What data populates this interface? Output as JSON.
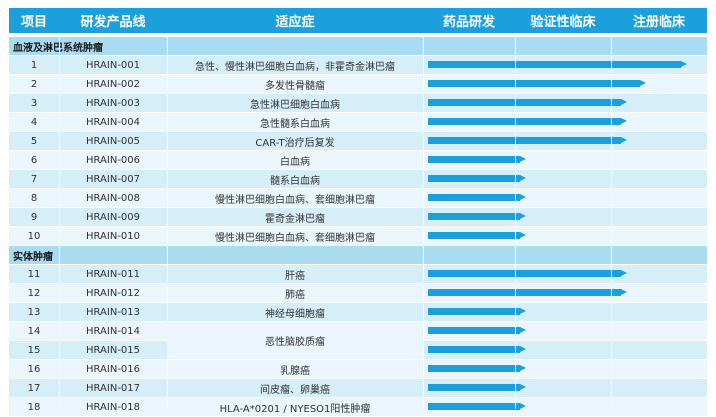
{
  "columns": {
    "c0": "项目",
    "c1": "研发产品线",
    "c2": "适应症",
    "c3": "药品研发",
    "c4": "验证性临床",
    "c5": "注册临床"
  },
  "sections": [
    {
      "title": "血液及淋巴系统肿瘤",
      "rows": [
        {
          "num": "1",
          "code": "HRAIN-001",
          "indication": "急性、慢性淋巴细胞白血病，非霍奇金淋巴瘤",
          "stage": 2.75
        },
        {
          "num": "2",
          "code": "HRAIN-002",
          "indication": "多发性骨髓瘤",
          "stage": 2.3
        },
        {
          "num": "3",
          "code": "HRAIN-003",
          "indication": "急性淋巴细胞白血病",
          "stage": 2.1
        },
        {
          "num": "4",
          "code": "HRAIN-004",
          "indication": "急性髓系白血病",
          "stage": 2.1
        },
        {
          "num": "5",
          "code": "HRAIN-005",
          "indication": "CAR-T治疗后复发",
          "stage": 2.1
        },
        {
          "num": "6",
          "code": "HRAIN-006",
          "indication": "白血病",
          "stage": 1.0
        },
        {
          "num": "7",
          "code": "HRAIN-007",
          "indication": "髓系白血病",
          "stage": 1.0
        },
        {
          "num": "8",
          "code": "HRAIN-008",
          "indication": "慢性淋巴细胞白血病、套细胞淋巴瘤",
          "stage": 1.0
        },
        {
          "num": "9",
          "code": "HRAIN-009",
          "indication": "霍奇金淋巴瘤",
          "stage": 1.0
        },
        {
          "num": "10",
          "code": "HRAIN-010",
          "indication": "慢性淋巴细胞白血病、套细胞淋巴瘤",
          "stage": 1.0
        }
      ]
    },
    {
      "title": "实体肿瘤",
      "rows": [
        {
          "num": "11",
          "code": "HRAIN-011",
          "indication": "肝癌",
          "stage": 2.1
        },
        {
          "num": "12",
          "code": "HRAIN-012",
          "indication": "肺癌",
          "stage": 2.1
        },
        {
          "num": "13",
          "code": "HRAIN-013",
          "indication": "神经母细胞瘤",
          "stage": 1.0
        },
        {
          "num": "14",
          "code": "HRAIN-014",
          "indication": "恶性脑胶质瘤",
          "stage": 1.0
        },
        {
          "num": "15",
          "code": "HRAIN-015",
          "indication": "",
          "stage": 1.0
        },
        {
          "num": "16",
          "code": "HRAIN-016",
          "indication": "乳腺癌",
          "stage": 1.0
        },
        {
          "num": "17",
          "code": "HRAIN-017",
          "indication": "间皮瘤、卵巢癌",
          "stage": 1.0
        },
        {
          "num": "18",
          "code": "HRAIN-018",
          "indication": "HLA-A*0201 / NYESO1阳性肿瘤",
          "stage": 1.0
        }
      ]
    }
  ],
  "colors": {
    "header": "#1ba0dc",
    "section": "#a9dcef",
    "row_odd": "#d6eef8",
    "row_even": "#eaf6fc",
    "bar": "#1ba0dc"
  }
}
